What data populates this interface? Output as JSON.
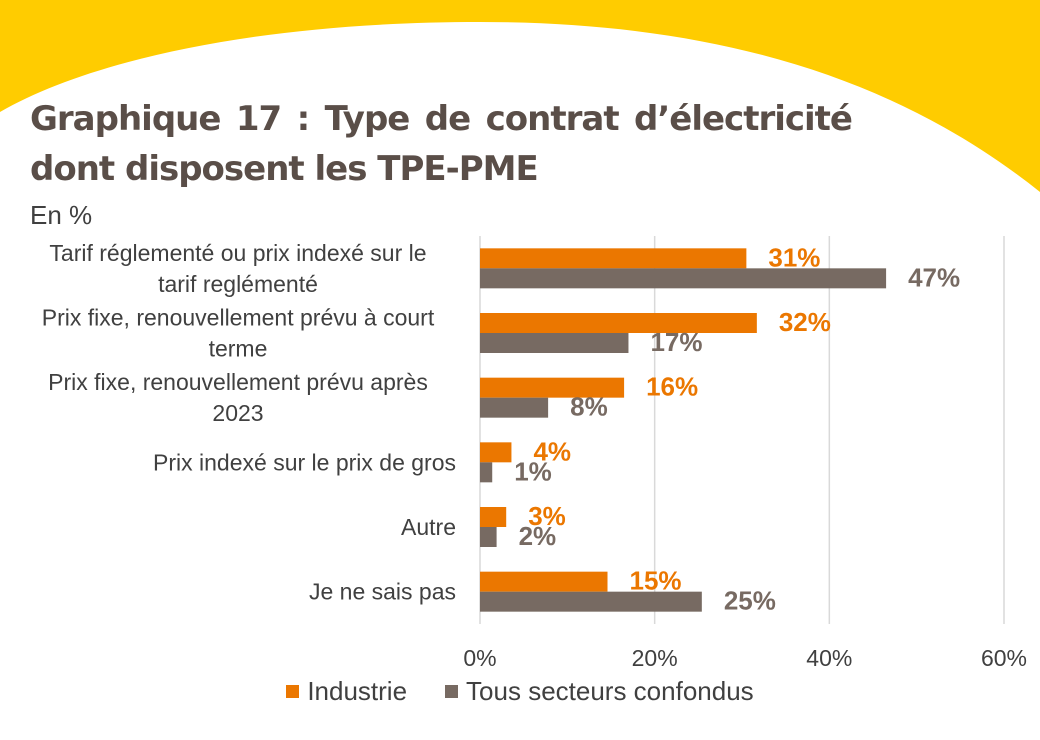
{
  "header": {
    "title_line1": "Graphique 17 : Type de contrat d’électricité",
    "title_line2": "dont disposent les TPE-PME",
    "subtitle": "En %"
  },
  "colors": {
    "background_accent": "#FFCC00",
    "title": "#5A4E48",
    "industrie": "#EB7700",
    "tous_secteurs": "#776A62",
    "grid": "#D9D9D9"
  },
  "chart_data": {
    "type": "bar",
    "orientation": "horizontal",
    "title": "Graphique 17 : Type de contrat d’électricité dont disposent les TPE-PME",
    "subtitle": "En %",
    "categories": [
      [
        "Tarif réglementé ou prix indexé sur le",
        "tarif reglémenté"
      ],
      [
        "Prix fixe, renouvellement prévu à court",
        "terme"
      ],
      [
        "Prix fixe, renouvellement prévu après",
        "2023"
      ],
      [
        "Prix indexé sur le prix de gros"
      ],
      [
        "Autre"
      ],
      [
        "Je ne sais pas"
      ]
    ],
    "series": [
      {
        "name": "Industrie",
        "values": [
          30.5,
          31.7,
          16.5,
          3.6,
          3.0,
          14.6
        ],
        "labels": [
          "31%",
          "32%",
          "16%",
          "4%",
          "3%",
          "15%"
        ]
      },
      {
        "name": "Tous secteurs confondus",
        "values": [
          46.5,
          17.0,
          7.8,
          1.4,
          1.9,
          25.4
        ],
        "labels": [
          "47%",
          "17%",
          "8%",
          "1%",
          "2%",
          "25%"
        ]
      }
    ],
    "xlim": [
      0,
      60
    ],
    "xticks": [
      "0%",
      "20%",
      "40%",
      "60%"
    ],
    "xtick_values": [
      0,
      20,
      40,
      60
    ],
    "grid": true,
    "legend_position": "bottom"
  }
}
